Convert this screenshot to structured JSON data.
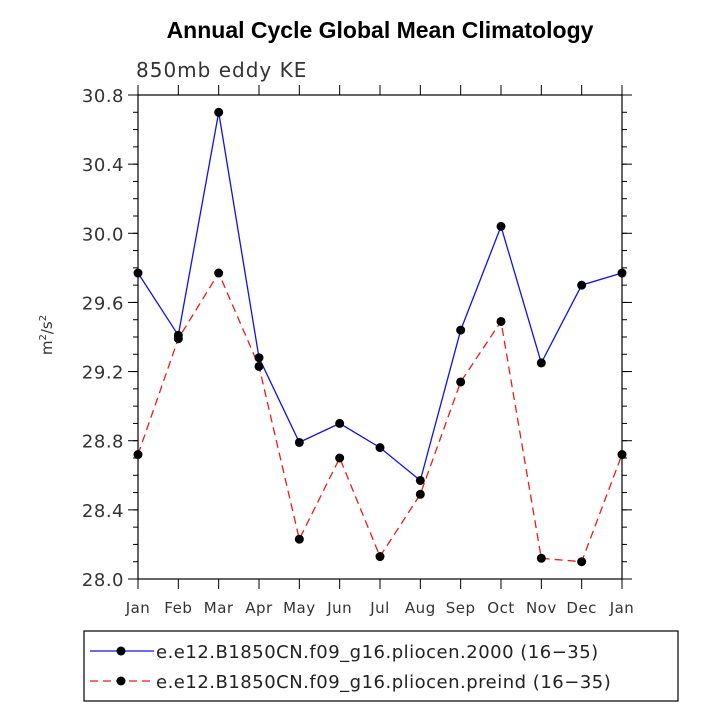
{
  "chart_data": {
    "type": "line",
    "title": "Annual Cycle Global Mean Climatology",
    "subtitle": "850mb eddy KE",
    "xlabel": "",
    "ylabel": "m²/s²",
    "ylabel_parts": {
      "base1": "m",
      "sup1": "2",
      "sep": "/s",
      "sup2": "2"
    },
    "categories": [
      "Jan",
      "Feb",
      "Mar",
      "Apr",
      "May",
      "Jun",
      "Jul",
      "Aug",
      "Sep",
      "Oct",
      "Nov",
      "Dec",
      "Jan"
    ],
    "ylim": [
      28.0,
      30.8
    ],
    "yticks": [
      28.0,
      28.4,
      28.8,
      29.2,
      29.6,
      30.0,
      30.4,
      30.8
    ],
    "ytick_labels": [
      "28.0",
      "28.4",
      "28.8",
      "29.2",
      "29.6",
      "30.0",
      "30.4",
      "30.8"
    ],
    "series": [
      {
        "name": "e.e12.B1850CN.f09_g16.pliocen.2000 (16−35)",
        "color": "#1010ee",
        "dash": "solid",
        "values": [
          29.77,
          29.41,
          30.7,
          29.28,
          28.79,
          28.9,
          28.76,
          28.57,
          29.44,
          30.04,
          29.25,
          29.7,
          29.77
        ]
      },
      {
        "name": "e.e12.B1850CN.f09_g16.pliocen.preind (16−35)",
        "color": "#ee1a1a",
        "dash": "dashed",
        "values": [
          28.72,
          29.39,
          29.77,
          29.23,
          28.23,
          28.7,
          28.13,
          28.49,
          29.14,
          29.49,
          28.12,
          28.1,
          28.72
        ]
      }
    ],
    "legend": {
      "placement": "bottom",
      "entries": [
        "e.e12.B1850CN.f09_g16.pliocen.2000 (16−35)",
        "e.e12.B1850CN.f09_g16.pliocen.preind (16−35)"
      ]
    },
    "grid": false
  }
}
